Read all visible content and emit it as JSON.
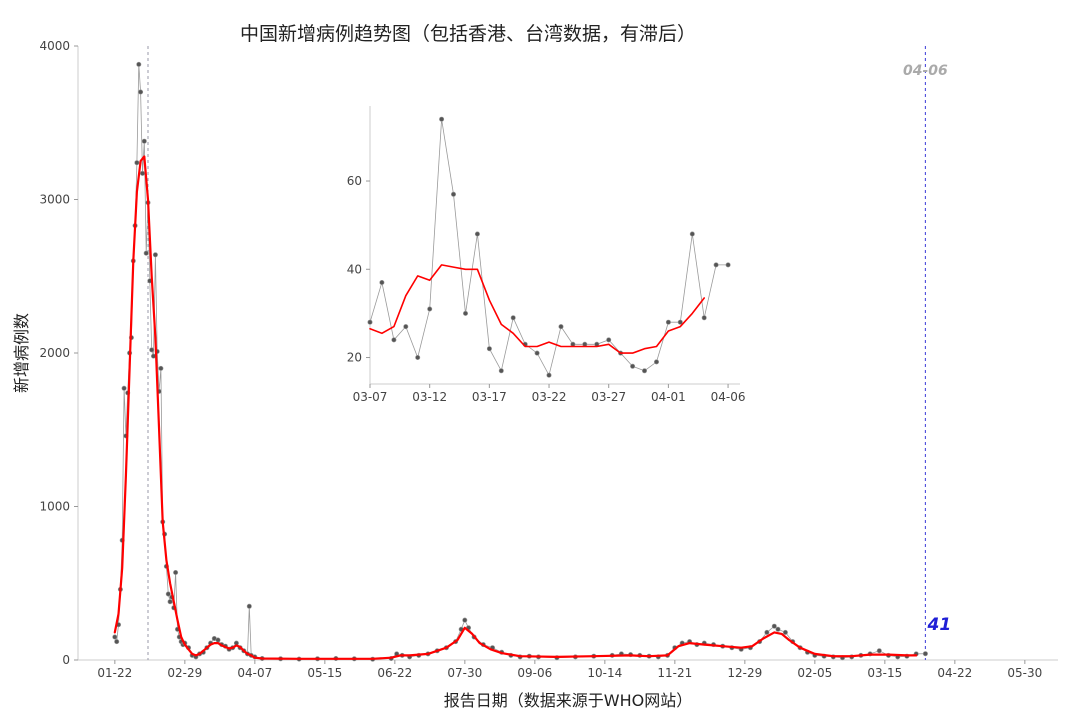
{
  "chart_data": [
    {
      "type": "line",
      "title": "中国新增病例趋势图（包括香港、台湾数据，有滞后）",
      "xlabel": "报告日期（数据来源于WHO网站）",
      "ylabel": "新增病例数",
      "x_tick_labels": [
        "01-22",
        "02-29",
        "04-07",
        "05-15",
        "06-22",
        "07-30",
        "09-06",
        "10-14",
        "11-21",
        "12-29",
        "02-05",
        "03-15",
        "04-22",
        "05-30"
      ],
      "x_tick_days": [
        0,
        38,
        76,
        114,
        152,
        190,
        228,
        266,
        304,
        342,
        380,
        418,
        456,
        494
      ],
      "xlim_days": [
        -20,
        512
      ],
      "y_ticks": [
        0,
        1000,
        2000,
        3000,
        4000
      ],
      "ylim": [
        0,
        4000
      ],
      "grid": false,
      "vline_dashed_gray_day": 18,
      "vline_dashed_blue_day": 440,
      "vline_label": "04-06",
      "last_value_label": "41",
      "series": [
        {
          "color": "#808080",
          "style": "points-thin-line",
          "points": [
            [
              0,
              150
            ],
            [
              1,
              120
            ],
            [
              2,
              230
            ],
            [
              3,
              460
            ],
            [
              4,
              780
            ],
            [
              5,
              1770
            ],
            [
              6,
              1460
            ],
            [
              7,
              1740
            ],
            [
              8,
              2000
            ],
            [
              9,
              2100
            ],
            [
              10,
              2600
            ],
            [
              11,
              2830
            ],
            [
              12,
              3240
            ],
            [
              13,
              3880
            ],
            [
              14,
              3700
            ],
            [
              15,
              3170
            ],
            [
              16,
              3380
            ],
            [
              17,
              2650
            ],
            [
              18,
              2980
            ],
            [
              19,
              2470
            ],
            [
              20,
              2020
            ],
            [
              21,
              1980
            ],
            [
              22,
              2640
            ],
            [
              23,
              2010
            ],
            [
              24,
              1750
            ],
            [
              25,
              1900
            ],
            [
              26,
              900
            ],
            [
              27,
              820
            ],
            [
              28,
              610
            ],
            [
              29,
              430
            ],
            [
              30,
              380
            ],
            [
              31,
              410
            ],
            [
              32,
              340
            ],
            [
              33,
              570
            ],
            [
              34,
              200
            ],
            [
              35,
              150
            ],
            [
              36,
              120
            ],
            [
              37,
              100
            ],
            [
              38,
              110
            ],
            [
              40,
              80
            ],
            [
              42,
              30
            ],
            [
              44,
              20
            ],
            [
              46,
              40
            ],
            [
              48,
              50
            ],
            [
              50,
              80
            ],
            [
              52,
              110
            ],
            [
              54,
              140
            ],
            [
              56,
              130
            ],
            [
              58,
              100
            ],
            [
              60,
              90
            ],
            [
              62,
              70
            ],
            [
              64,
              80
            ],
            [
              66,
              110
            ],
            [
              68,
              80
            ],
            [
              70,
              60
            ],
            [
              72,
              40
            ],
            [
              73,
              350
            ],
            [
              74,
              30
            ],
            [
              76,
              20
            ],
            [
              80,
              10
            ],
            [
              90,
              8
            ],
            [
              100,
              6
            ],
            [
              110,
              8
            ],
            [
              120,
              10
            ],
            [
              130,
              8
            ],
            [
              140,
              5
            ],
            [
              150,
              10
            ],
            [
              153,
              40
            ],
            [
              156,
              30
            ],
            [
              160,
              20
            ],
            [
              165,
              30
            ],
            [
              170,
              40
            ],
            [
              175,
              60
            ],
            [
              180,
              80
            ],
            [
              185,
              120
            ],
            [
              188,
              200
            ],
            [
              190,
              260
            ],
            [
              192,
              210
            ],
            [
              195,
              150
            ],
            [
              200,
              100
            ],
            [
              205,
              80
            ],
            [
              210,
              50
            ],
            [
              215,
              30
            ],
            [
              220,
              20
            ],
            [
              225,
              25
            ],
            [
              230,
              20
            ],
            [
              240,
              15
            ],
            [
              250,
              20
            ],
            [
              260,
              25
            ],
            [
              270,
              30
            ],
            [
              275,
              40
            ],
            [
              280,
              35
            ],
            [
              285,
              30
            ],
            [
              290,
              25
            ],
            [
              295,
              20
            ],
            [
              300,
              30
            ],
            [
              304,
              80
            ],
            [
              308,
              110
            ],
            [
              312,
              120
            ],
            [
              316,
              100
            ],
            [
              320,
              110
            ],
            [
              325,
              100
            ],
            [
              330,
              90
            ],
            [
              335,
              80
            ],
            [
              340,
              70
            ],
            [
              345,
              80
            ],
            [
              350,
              120
            ],
            [
              354,
              180
            ],
            [
              358,
              220
            ],
            [
              360,
              200
            ],
            [
              364,
              180
            ],
            [
              368,
              120
            ],
            [
              372,
              80
            ],
            [
              376,
              50
            ],
            [
              380,
              30
            ],
            [
              385,
              25
            ],
            [
              390,
              20
            ],
            [
              395,
              15
            ],
            [
              400,
              20
            ],
            [
              405,
              30
            ],
            [
              410,
              40
            ],
            [
              415,
              60
            ],
            [
              420,
              30
            ],
            [
              425,
              20
            ],
            [
              430,
              25
            ],
            [
              435,
              40
            ],
            [
              440,
              41
            ]
          ]
        },
        {
          "name": "",
          "color": "#ff0000",
          "style": "smooth-line",
          "points": [
            [
              0,
              180
            ],
            [
              2,
              300
            ],
            [
              4,
              600
            ],
            [
              6,
              1200
            ],
            [
              8,
              1900
            ],
            [
              10,
              2600
            ],
            [
              12,
              3050
            ],
            [
              14,
              3250
            ],
            [
              16,
              3280
            ],
            [
              18,
              3000
            ],
            [
              20,
              2500
            ],
            [
              22,
              2100
            ],
            [
              24,
              1500
            ],
            [
              26,
              900
            ],
            [
              28,
              650
            ],
            [
              30,
              500
            ],
            [
              32,
              380
            ],
            [
              34,
              260
            ],
            [
              36,
              150
            ],
            [
              38,
              100
            ],
            [
              40,
              70
            ],
            [
              42,
              40
            ],
            [
              44,
              30
            ],
            [
              46,
              40
            ],
            [
              48,
              60
            ],
            [
              50,
              80
            ],
            [
              52,
              100
            ],
            [
              54,
              110
            ],
            [
              56,
              110
            ],
            [
              58,
              95
            ],
            [
              60,
              85
            ],
            [
              62,
              75
            ],
            [
              64,
              80
            ],
            [
              66,
              95
            ],
            [
              68,
              85
            ],
            [
              70,
              60
            ],
            [
              72,
              40
            ],
            [
              74,
              30
            ],
            [
              76,
              15
            ],
            [
              80,
              10
            ],
            [
              100,
              8
            ],
            [
              120,
              8
            ],
            [
              140,
              8
            ],
            [
              150,
              15
            ],
            [
              155,
              30
            ],
            [
              160,
              30
            ],
            [
              170,
              40
            ],
            [
              180,
              80
            ],
            [
              186,
              130
            ],
            [
              190,
              210
            ],
            [
              194,
              170
            ],
            [
              198,
              110
            ],
            [
              204,
              70
            ],
            [
              210,
              45
            ],
            [
              220,
              25
            ],
            [
              240,
              20
            ],
            [
              260,
              25
            ],
            [
              280,
              30
            ],
            [
              290,
              25
            ],
            [
              300,
              30
            ],
            [
              306,
              90
            ],
            [
              312,
              110
            ],
            [
              320,
              100
            ],
            [
              330,
              90
            ],
            [
              340,
              80
            ],
            [
              346,
              90
            ],
            [
              352,
              140
            ],
            [
              358,
              180
            ],
            [
              362,
              170
            ],
            [
              366,
              130
            ],
            [
              372,
              80
            ],
            [
              380,
              40
            ],
            [
              390,
              25
            ],
            [
              400,
              25
            ],
            [
              410,
              35
            ],
            [
              420,
              35
            ],
            [
              430,
              30
            ],
            [
              435,
              30
            ]
          ]
        }
      ]
    },
    {
      "type": "line",
      "title": "",
      "x_tick_labels": [
        "03-07",
        "03-12",
        "03-17",
        "03-22",
        "03-27",
        "04-01",
        "04-06"
      ],
      "x_tick_days": [
        0,
        5,
        10,
        15,
        20,
        25,
        30
      ],
      "xlim_days": [
        0,
        31
      ],
      "y_ticks": [
        20,
        40,
        60
      ],
      "ylim": [
        14,
        77
      ],
      "grid": false,
      "series": [
        {
          "color": "#808080",
          "style": "points-thin-line",
          "points": [
            [
              0,
              28
            ],
            [
              1,
              37
            ],
            [
              2,
              24
            ],
            [
              3,
              27
            ],
            [
              4,
              20
            ],
            [
              5,
              31
            ],
            [
              6,
              74
            ],
            [
              7,
              57
            ],
            [
              8,
              30
            ],
            [
              9,
              48
            ],
            [
              10,
              22
            ],
            [
              11,
              17
            ],
            [
              12,
              29
            ],
            [
              13,
              23
            ],
            [
              14,
              21
            ],
            [
              15,
              16
            ],
            [
              16,
              27
            ],
            [
              17,
              23
            ],
            [
              18,
              23
            ],
            [
              19,
              23
            ],
            [
              20,
              24
            ],
            [
              21,
              21
            ],
            [
              22,
              18
            ],
            [
              23,
              17
            ],
            [
              24,
              19
            ],
            [
              25,
              28
            ],
            [
              26,
              28
            ],
            [
              27,
              48
            ],
            [
              28,
              29
            ],
            [
              29,
              41
            ],
            [
              30,
              41
            ]
          ]
        },
        {
          "name": "",
          "color": "#ff0000",
          "style": "smooth-line",
          "points": [
            [
              0,
              26.5
            ],
            [
              1,
              25.5
            ],
            [
              2,
              27
            ],
            [
              3,
              34
            ],
            [
              4,
              38.5
            ],
            [
              5,
              37.5
            ],
            [
              6,
              41
            ],
            [
              7,
              40.5
            ],
            [
              8,
              40
            ],
            [
              9,
              40
            ],
            [
              10,
              33
            ],
            [
              11,
              27.5
            ],
            [
              12,
              25.5
            ],
            [
              13,
              22.5
            ],
            [
              14,
              22.5
            ],
            [
              15,
              23.5
            ],
            [
              16,
              22.5
            ],
            [
              17,
              22.5
            ],
            [
              18,
              22.5
            ],
            [
              19,
              22.5
            ],
            [
              20,
              23
            ],
            [
              21,
              21
            ],
            [
              22,
              21
            ],
            [
              23,
              22
            ],
            [
              24,
              22.5
            ],
            [
              25,
              26
            ],
            [
              26,
              27
            ],
            [
              27,
              30
            ],
            [
              28,
              33.5
            ]
          ]
        }
      ]
    }
  ]
}
